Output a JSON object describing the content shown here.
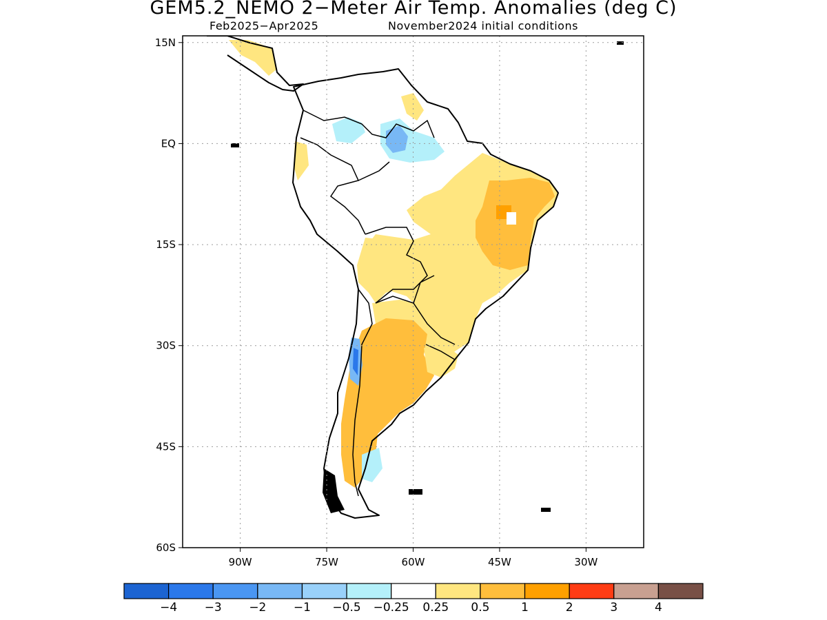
{
  "header": {
    "title": "GEM5.2_NEMO 2−Meter Air Temp. Anomalies (deg C)",
    "period": "Feb2025−Apr2025",
    "init": "November2024 initial conditions"
  },
  "map": {
    "lat_labels": [
      "15N",
      "EQ",
      "15S",
      "30S",
      "45S",
      "60S"
    ],
    "lon_labels": [
      "90W",
      "75W",
      "60W",
      "45W",
      "30W"
    ],
    "lat_values": [
      15,
      0,
      -15,
      -30,
      -45,
      -60
    ],
    "lon_values": [
      -90,
      -75,
      -60,
      -45,
      -30
    ],
    "lon_range": [
      -100,
      -20
    ],
    "lat_range": [
      -60,
      16
    ],
    "grid": "dotted"
  },
  "colorbar": {
    "colors": [
      "#1c64d2",
      "#2b78ea",
      "#4a96f2",
      "#78b8f5",
      "#99d1fa",
      "#b4f0fa",
      "#ffffff",
      "#ffe680",
      "#ffbe3c",
      "#ffa000",
      "#ff3c14",
      "#c8a091",
      "#785046"
    ],
    "labels": [
      "−4",
      "−3",
      "−2",
      "−1",
      "−0.5",
      "−0.25",
      "0.25",
      "0.5",
      "1",
      "2",
      "3",
      "4"
    ]
  }
}
